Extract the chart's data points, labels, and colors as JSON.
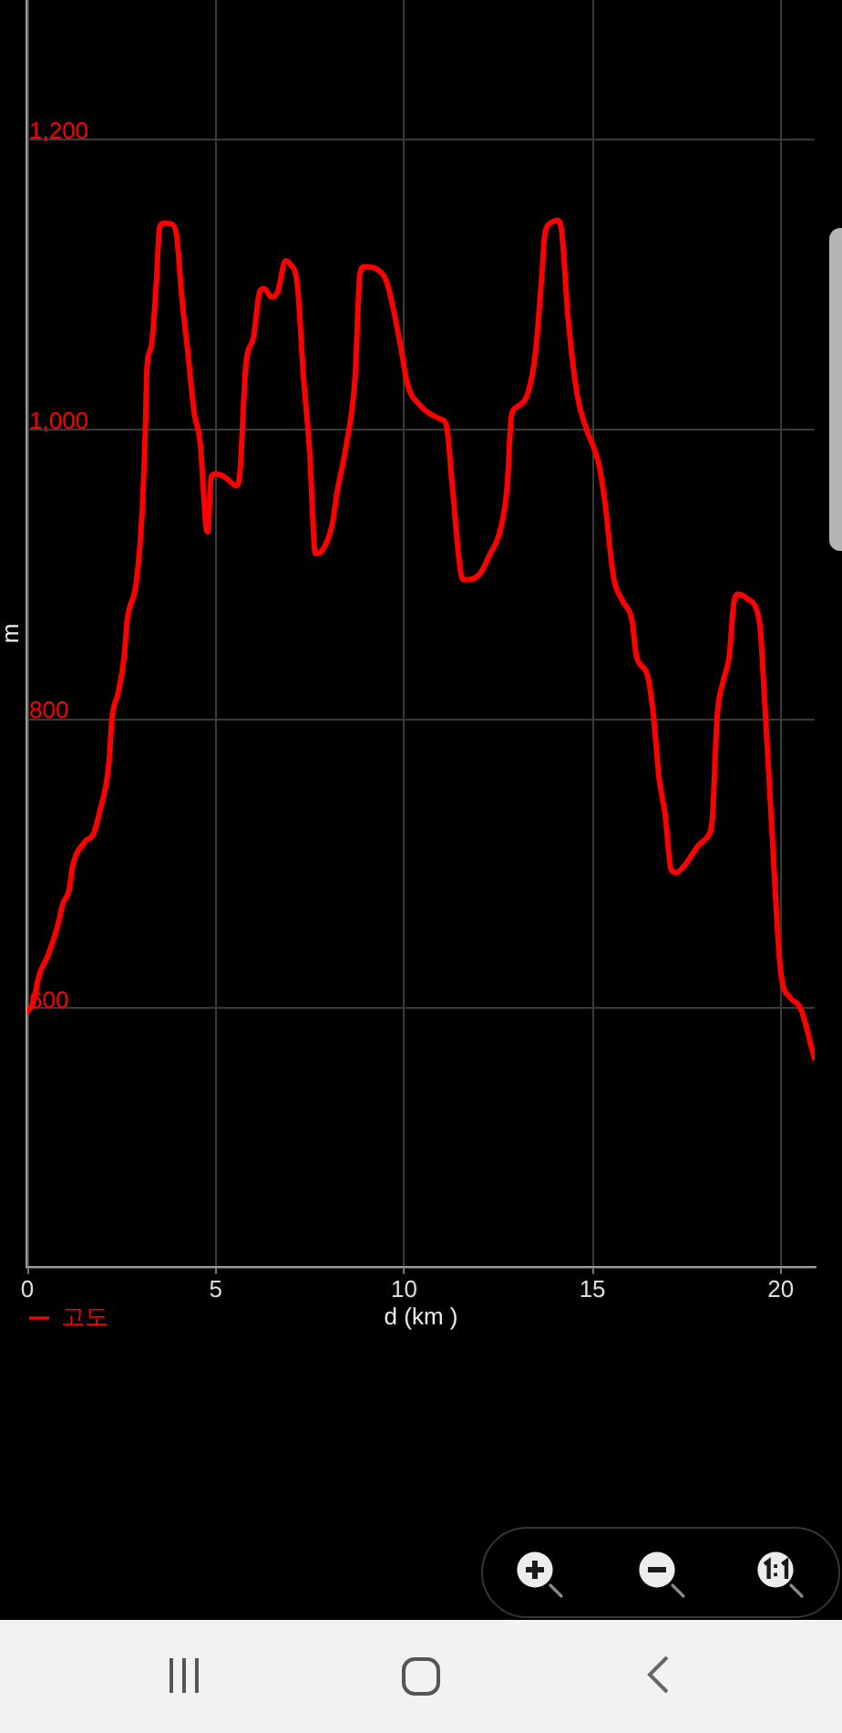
{
  "chart_data": {
    "type": "line",
    "xlabel": "d (km )",
    "ylabel": "m",
    "x": [
      0,
      0.15,
      0.31,
      0.55,
      0.79,
      0.95,
      1.11,
      1.2,
      1.52,
      1.76,
      1.92,
      2.16,
      2.25,
      2.41,
      2.57,
      2.65,
      2.89,
      3.05,
      3.13,
      3.18,
      3.29,
      3.42,
      3.51,
      3.62,
      3.86,
      3.97,
      4.1,
      4.26,
      4.43,
      4.59,
      4.67,
      4.75,
      4.79,
      4.88,
      4.99,
      5.23,
      5.55,
      5.64,
      5.8,
      6.0,
      6.17,
      6.28,
      6.49,
      6.65,
      6.85,
      6.97,
      7.17,
      7.33,
      7.49,
      7.65,
      7.82,
      8.1,
      8.22,
      8.46,
      8.7,
      8.83,
      8.94,
      9.43,
      9.59,
      9.91,
      10.09,
      10.4,
      10.96,
      11.12,
      11.28,
      11.53,
      11.61,
      12.01,
      12.25,
      12.58,
      12.74,
      12.85,
      12.98,
      13.3,
      13.49,
      13.66,
      13.74,
      13.95,
      14.08,
      14.19,
      14.35,
      14.6,
      14.84,
      15.16,
      15.32,
      15.56,
      15.81,
      16.05,
      16.17,
      16.45,
      16.61,
      16.77,
      16.93,
      17.09,
      17.21,
      17.42,
      17.82,
      18.06,
      18.18,
      18.31,
      18.47,
      18.63,
      18.76,
      18.87,
      19.11,
      19.44,
      19.56,
      19.76,
      20.0,
      20.24,
      20.53,
      20.89
    ],
    "series": [
      {
        "name": "고도",
        "color": "#ff0000",
        "values": [
          598,
          604,
          623,
          637,
          656,
          673,
          682,
          698,
          715,
          721,
          736,
          768,
          801,
          818,
          843,
          868,
          894,
          944,
          998,
          1044,
          1057,
          1099,
          1139,
          1142,
          1141,
          1132,
          1091,
          1053,
          1011,
          990,
          960,
          931,
          929,
          967,
          969,
          967,
          961,
          969,
          1044,
          1063,
          1095,
          1097,
          1091,
          1095,
          1116,
          1114,
          1099,
          1036,
          986,
          914,
          916,
          935,
          956,
          988,
          1036,
          1107,
          1112,
          1107,
          1097,
          1057,
          1031,
          1017,
          1007,
          1003,
          961,
          898,
          896,
          900,
          912,
          933,
          961,
          1009,
          1015,
          1026,
          1053,
          1107,
          1135,
          1143,
          1144,
          1135,
          1078,
          1023,
          1000,
          977,
          952,
          898,
          881,
          868,
          843,
          831,
          805,
          759,
          734,
          696,
          694,
          698,
          713,
          719,
          730,
          801,
          826,
          843,
          881,
          886,
          883,
          866,
          818,
          726,
          625,
          608,
          600,
          566
        ]
      }
    ],
    "xlim": [
      0,
      20.9
    ],
    "ylim": [
      422,
      1296
    ],
    "xticks": [
      0,
      5,
      10,
      15,
      20
    ],
    "yticks": [
      600,
      800,
      {
        "value": 1000,
        "label": "1,000"
      },
      {
        "value": 1200,
        "label": "1,200"
      }
    ],
    "grid": true,
    "legend": "bottom left"
  }
}
